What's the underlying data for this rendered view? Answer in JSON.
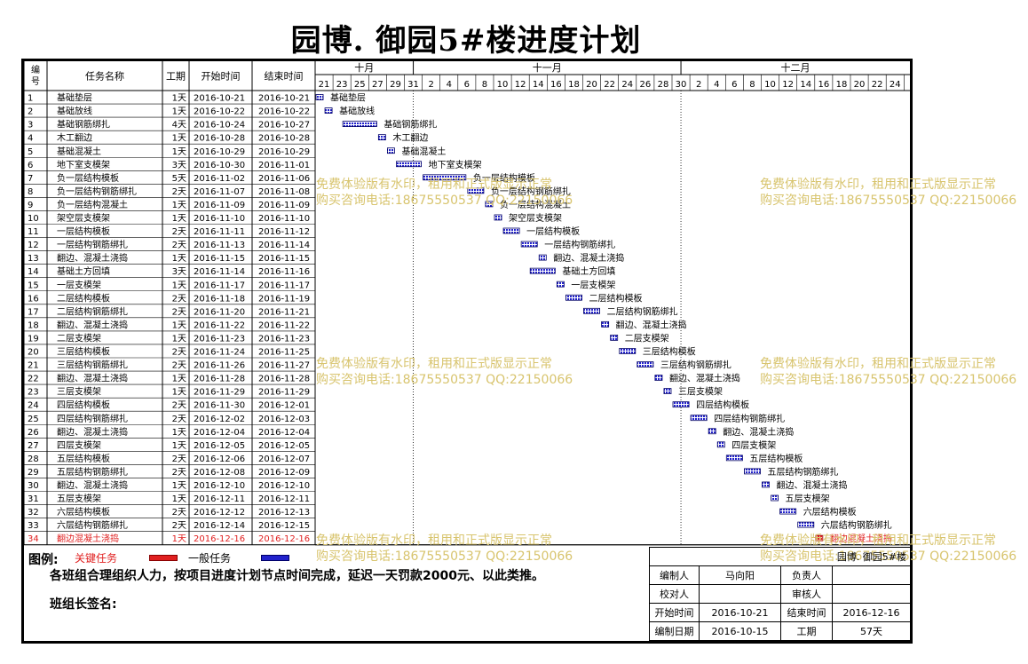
{
  "title": "园博. 御园5#楼进度计划",
  "header": {
    "no": [
      "编",
      "号"
    ],
    "name": "任务名称",
    "duration": "工期",
    "start": "开始时间",
    "end": "结束时间",
    "months": [
      "十月",
      "十一月",
      "十二月"
    ],
    "days": [
      "21",
      "23",
      "25",
      "27",
      "29",
      "31",
      "2",
      "4",
      "6",
      "8",
      "10",
      "12",
      "14",
      "16",
      "18",
      "20",
      "22",
      "24",
      "26",
      "28",
      "30",
      "2",
      "4",
      "6",
      "8",
      "10",
      "12",
      "14",
      "16",
      "18",
      "20",
      "22",
      "24"
    ]
  },
  "chart_data": {
    "type": "gantt",
    "title": "园博. 御园5#楼进度计划",
    "timeline_start": "2016-10-21",
    "tasks": [
      {
        "no": "1",
        "name": "基础垫层",
        "duration": "1天",
        "start": "2016-10-21",
        "end": "2016-10-21"
      },
      {
        "no": "2",
        "name": "基础放线",
        "duration": "1天",
        "start": "2016-10-22",
        "end": "2016-10-22"
      },
      {
        "no": "3",
        "name": "基础钢筋绑扎",
        "duration": "4天",
        "start": "2016-10-24",
        "end": "2016-10-27"
      },
      {
        "no": "4",
        "name": "木工翻边",
        "duration": "1天",
        "start": "2016-10-28",
        "end": "2016-10-28"
      },
      {
        "no": "5",
        "name": "基础混凝土",
        "duration": "1天",
        "start": "2016-10-29",
        "end": "2016-10-29"
      },
      {
        "no": "6",
        "name": "地下室支模架",
        "duration": "3天",
        "start": "2016-10-30",
        "end": "2016-11-01"
      },
      {
        "no": "7",
        "name": "负一层结构模板",
        "duration": "5天",
        "start": "2016-11-02",
        "end": "2016-11-06"
      },
      {
        "no": "8",
        "name": "负一层结构钢筋绑扎",
        "duration": "2天",
        "start": "2016-11-07",
        "end": "2016-11-08"
      },
      {
        "no": "9",
        "name": "负一层结构混凝土",
        "duration": "1天",
        "start": "2016-11-09",
        "end": "2016-11-09"
      },
      {
        "no": "10",
        "name": "架空层支模架",
        "duration": "1天",
        "start": "2016-11-10",
        "end": "2016-11-10"
      },
      {
        "no": "11",
        "name": "一层结构模板",
        "duration": "2天",
        "start": "2016-11-11",
        "end": "2016-11-12"
      },
      {
        "no": "12",
        "name": "一层结构钢筋绑扎",
        "duration": "2天",
        "start": "2016-11-13",
        "end": "2016-11-14"
      },
      {
        "no": "13",
        "name": "翻边、混凝土浇捣",
        "duration": "1天",
        "start": "2016-11-15",
        "end": "2016-11-15"
      },
      {
        "no": "14",
        "name": "基础土方回填",
        "duration": "3天",
        "start": "2016-11-14",
        "end": "2016-11-16"
      },
      {
        "no": "15",
        "name": "一层支模架",
        "duration": "1天",
        "start": "2016-11-17",
        "end": "2016-11-17"
      },
      {
        "no": "16",
        "name": "二层结构模板",
        "duration": "2天",
        "start": "2016-11-18",
        "end": "2016-11-19"
      },
      {
        "no": "17",
        "name": "二层结构钢筋绑扎",
        "duration": "2天",
        "start": "2016-11-20",
        "end": "2016-11-21"
      },
      {
        "no": "18",
        "name": "翻边、混凝土浇捣",
        "duration": "1天",
        "start": "2016-11-22",
        "end": "2016-11-22"
      },
      {
        "no": "19",
        "name": "二层支模架",
        "duration": "1天",
        "start": "2016-11-23",
        "end": "2016-11-23"
      },
      {
        "no": "20",
        "name": "三层结构模板",
        "duration": "2天",
        "start": "2016-11-24",
        "end": "2016-11-25"
      },
      {
        "no": "21",
        "name": "三层结构钢筋绑扎",
        "duration": "2天",
        "start": "2016-11-26",
        "end": "2016-11-27"
      },
      {
        "no": "22",
        "name": "翻边、混凝土浇捣",
        "duration": "1天",
        "start": "2016-11-28",
        "end": "2016-11-28"
      },
      {
        "no": "23",
        "name": "三层支模架",
        "duration": "1天",
        "start": "2016-11-29",
        "end": "2016-11-29"
      },
      {
        "no": "24",
        "name": "四层结构模板",
        "duration": "2天",
        "start": "2016-11-30",
        "end": "2016-12-01"
      },
      {
        "no": "25",
        "name": "四层结构钢筋绑扎",
        "duration": "2天",
        "start": "2016-12-02",
        "end": "2016-12-03"
      },
      {
        "no": "26",
        "name": "翻边、混凝土浇捣",
        "duration": "1天",
        "start": "2016-12-04",
        "end": "2016-12-04"
      },
      {
        "no": "27",
        "name": "四层支模架",
        "duration": "1天",
        "start": "2016-12-05",
        "end": "2016-12-05"
      },
      {
        "no": "28",
        "name": "五层结构模板",
        "duration": "2天",
        "start": "2016-12-06",
        "end": "2016-12-07"
      },
      {
        "no": "29",
        "name": "五层结构钢筋绑扎",
        "duration": "2天",
        "start": "2016-12-08",
        "end": "2016-12-09"
      },
      {
        "no": "30",
        "name": "翻边、混凝土浇捣",
        "duration": "1天",
        "start": "2016-12-10",
        "end": "2016-12-10"
      },
      {
        "no": "31",
        "name": "五层支模架",
        "duration": "1天",
        "start": "2016-12-11",
        "end": "2016-12-11"
      },
      {
        "no": "32",
        "name": "六层结构模板",
        "duration": "2天",
        "start": "2016-12-12",
        "end": "2016-12-13"
      },
      {
        "no": "33",
        "name": "六层结构钢筋绑扎",
        "duration": "2天",
        "start": "2016-12-14",
        "end": "2016-12-15"
      },
      {
        "no": "34",
        "name": "翻边混凝土浇捣",
        "duration": "1天",
        "start": "2016-12-16",
        "end": "2016-12-16",
        "critical": true
      }
    ]
  },
  "legend": {
    "title": "图例:",
    "critical": "关键任务",
    "normal": "一般任务"
  },
  "note": "各班组合理组织人力，按项目进度计划节点时间完成，延迟一天罚款2000元、以此类推。",
  "sign": "班组长签名:",
  "info": {
    "project": "园博. 御园5#楼",
    "editor_label": "编制人",
    "editor": "马向阳",
    "owner_label": "负责人",
    "owner": "",
    "checker_label": "校对人",
    "checker": "",
    "reviewer_label": "审核人",
    "reviewer": "",
    "start_label": "开始时间",
    "start": "2016-10-21",
    "end_label": "结束时间",
    "end": "2016-12-16",
    "made_label": "编制日期",
    "made": "2016-10-15",
    "dur_label": "工期",
    "duration": "57天"
  },
  "watermark": {
    "line1": "免费体验版有水印，租用和正式版显示正常",
    "line2": "购买咨询电话:18675550537 QQ:22150066"
  },
  "colors": {
    "normal_bar": "#2222cc",
    "critical_bar": "#e02020",
    "critical_text": "#e02020",
    "watermark": "#d8c46e"
  }
}
